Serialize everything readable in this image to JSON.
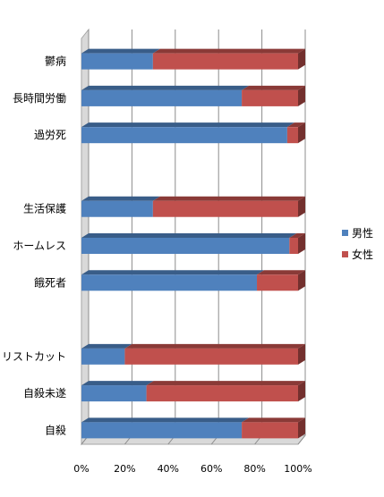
{
  "chart_data": {
    "type": "bar",
    "orientation": "horizontal",
    "stacked": "percent",
    "style": "3d",
    "categories": [
      "鬱病",
      "長時間労働",
      "過労死",
      "",
      "生活保護",
      "ホームレス",
      "餓死者",
      "",
      "リストカット",
      "自殺未遂",
      "自殺"
    ],
    "series": [
      {
        "name": "男性",
        "color": "#4f81bd",
        "values": [
          33,
          74,
          95,
          null,
          33,
          96,
          81,
          null,
          20,
          30,
          74
        ]
      },
      {
        "name": "女性",
        "color": "#c0504d",
        "values": [
          67,
          26,
          5,
          null,
          67,
          4,
          19,
          null,
          80,
          70,
          26
        ]
      }
    ],
    "xlim": [
      0,
      100
    ],
    "xticks": [
      "0%",
      "20%",
      "40%",
      "60%",
      "80%",
      "100%"
    ],
    "grid": true,
    "legend": "right",
    "title": "",
    "xlabel": "",
    "ylabel": ""
  }
}
